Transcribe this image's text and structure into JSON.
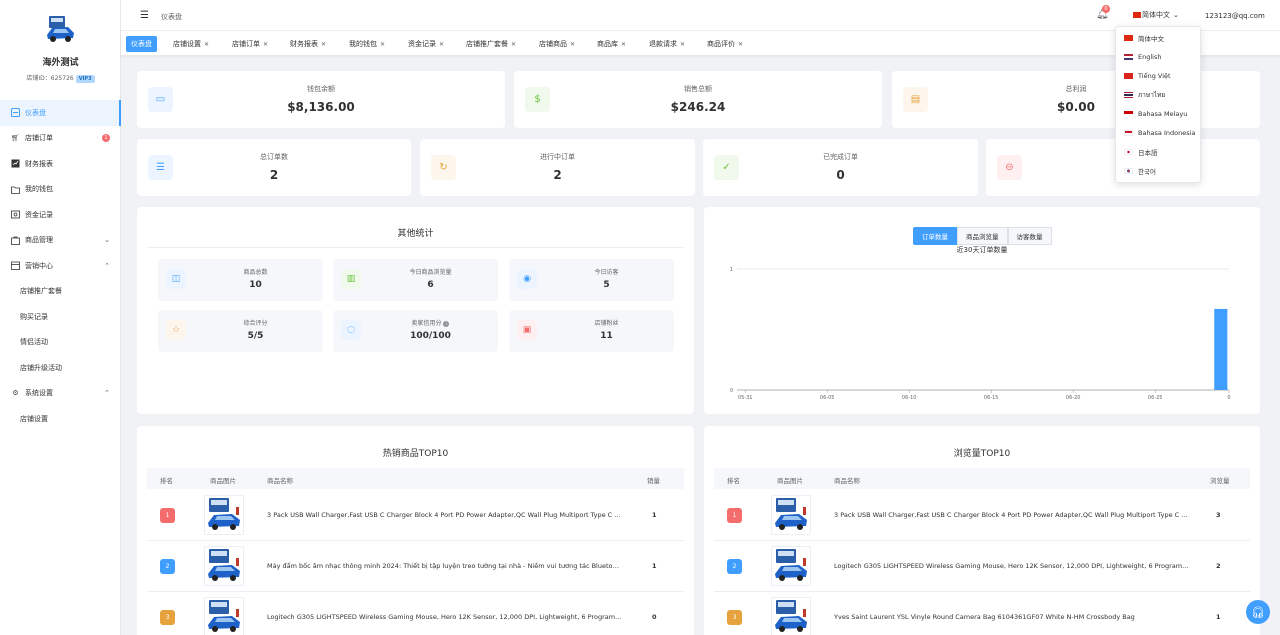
{
  "sidebar": {
    "shop_name": "海外测试",
    "shop_id": "店铺ID：625726",
    "vip": "VIP3",
    "items": [
      {
        "label": "仪表盘",
        "icon": "dashboard-icon"
      },
      {
        "label": "店铺订单",
        "icon": "cart-icon",
        "badge": "1"
      },
      {
        "label": "财务报表",
        "icon": "report-icon"
      },
      {
        "label": "我的钱包",
        "icon": "wallet-icon"
      },
      {
        "label": "资金记录",
        "icon": "record-icon"
      },
      {
        "label": "商品管理",
        "icon": "goods-icon"
      },
      {
        "label": "营销中心",
        "icon": "marketing-icon"
      },
      {
        "label": "店铺推广套餐"
      },
      {
        "label": "购买记录"
      },
      {
        "label": "情侣活动"
      },
      {
        "label": "店铺升级活动"
      },
      {
        "label": "系统设置",
        "icon": "settings-icon"
      },
      {
        "label": "店铺设置"
      }
    ]
  },
  "header": {
    "breadcrumb": "仪表盘",
    "notification_count": "0",
    "language": "简体中文",
    "user_email": "123123@qq.com"
  },
  "tabs": [
    "仪表盘",
    "店铺设置",
    "店铺订单",
    "财务报表",
    "我的钱包",
    "资金记录",
    "店铺推广套餐",
    "店铺商品",
    "商品库",
    "退款请求",
    "商品评价"
  ],
  "stats_row1": [
    {
      "label": "钱包余额",
      "value": "$8,136.00"
    },
    {
      "label": "销售总额",
      "value": "$246.24"
    },
    {
      "label": "总利润",
      "value": "$0.00"
    }
  ],
  "stats_row2": [
    {
      "label": "总订单数",
      "value": "2"
    },
    {
      "label": "进行中订单",
      "value": "2"
    },
    {
      "label": "已完成订单",
      "value": "0"
    }
  ],
  "other_stats": {
    "title": "其他统计",
    "items": [
      {
        "label": "商品总数",
        "value": "10"
      },
      {
        "label": "今日商品浏览量",
        "value": "6"
      },
      {
        "label": "今日访客",
        "value": "5"
      },
      {
        "label": "综合评分",
        "value": "5/5"
      },
      {
        "label": "卖家信用分",
        "value": "100/100"
      },
      {
        "label": "店铺粉丝",
        "value": "11"
      }
    ]
  },
  "chart": {
    "buttons": [
      "订单数量",
      "商品浏览量",
      "访客数量"
    ],
    "active_button": "订单数量"
  },
  "chart_data": {
    "type": "bar",
    "title": "近30天订单数量",
    "x_tick_labels": [
      "05-31",
      "06-05",
      "06-10",
      "06-15",
      "06-20",
      "06-25",
      "0"
    ],
    "y_tick_labels": [
      "0",
      "1"
    ],
    "categories": [
      "05-31",
      "06-01",
      "06-02",
      "06-03",
      "06-04",
      "06-05",
      "06-06",
      "06-07",
      "06-08",
      "06-09",
      "06-10",
      "06-11",
      "06-12",
      "06-13",
      "06-14",
      "06-15",
      "06-16",
      "06-17",
      "06-18",
      "06-19",
      "06-20",
      "06-21",
      "06-22",
      "06-23",
      "06-24",
      "06-25",
      "06-26",
      "06-27",
      "06-28",
      "06-29"
    ],
    "values": [
      0,
      0,
      0,
      0,
      0,
      0,
      0,
      0,
      0,
      0,
      0,
      0,
      0,
      0,
      0,
      0,
      0,
      0,
      0,
      0,
      0,
      0,
      0,
      0,
      0,
      0,
      0,
      0,
      0,
      0.67
    ],
    "ylim": [
      0,
      1
    ],
    "grid": true,
    "color": "#409eff"
  },
  "hot_products": {
    "title": "热销商品TOP10",
    "headers": [
      "排名",
      "商品图片",
      "商品名称",
      "销量"
    ],
    "rows": [
      {
        "rank": "1",
        "name": "3 Pack USB Wall Charger,Fast USB C Charger Block 4 Port PD Power Adapter,QC Wall Plug Multiport Type C ...",
        "value": "1"
      },
      {
        "rank": "2",
        "name": "Máy đẩm bốc âm nhạc thông minh 2024: Thiết bị tập luyện treo tường tại nhà - Niềm vui tương tác Bluetooth - ...",
        "value": "1"
      },
      {
        "rank": "3",
        "name": "Logitech G305 LIGHTSPEED Wireless Gaming Mouse, Hero 12K Sensor, 12,000 DPI, Lightweight, 6 Program...",
        "value": "0"
      }
    ]
  },
  "view_products": {
    "title": "浏览量TOP10",
    "headers": [
      "排名",
      "商品图片",
      "商品名称",
      "浏览量"
    ],
    "rows": [
      {
        "rank": "1",
        "name": "3 Pack USB Wall Charger,Fast USB C Charger Block 4 Port PD Power Adapter,QC Wall Plug Multiport Type C ...",
        "value": "3"
      },
      {
        "rank": "2",
        "name": "Logitech G305 LIGHTSPEED Wireless Gaming Mouse, Hero 12K Sensor, 12,000 DPI, Lightweight, 6 Program...",
        "value": "2"
      },
      {
        "rank": "3",
        "name": "Yves Saint Laurent YSL Vinyle Round Camera Bag 6104361GF07 White N-HM Crossbody Bag",
        "value": "1"
      }
    ]
  },
  "languages": [
    "简体中文",
    "English",
    "Tiếng Việt",
    "ภาษาไทย",
    "Bahasa Melayu",
    "Bahasa Indonesia",
    "日本語",
    "한국어"
  ],
  "colors": {
    "primary": "#409eff",
    "rank1": "#f56c6c",
    "rank2": "#409eff",
    "rank3": "#e6a23c"
  }
}
